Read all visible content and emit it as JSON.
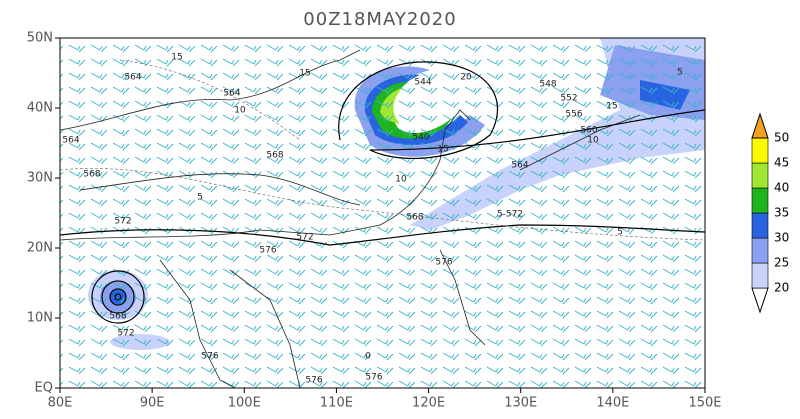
{
  "map": {
    "title": "00Z18MAY2020",
    "lon_ticks": [
      {
        "value": 80,
        "label": "80E"
      },
      {
        "value": 90,
        "label": "90E"
      },
      {
        "value": 100,
        "label": "100E"
      },
      {
        "value": 110,
        "label": "110E"
      },
      {
        "value": 120,
        "label": "120E"
      },
      {
        "value": 130,
        "label": "130E"
      },
      {
        "value": 140,
        "label": "140E"
      },
      {
        "value": 150,
        "label": "150E"
      }
    ],
    "lat_ticks": [
      {
        "value": 0,
        "label": "EQ"
      },
      {
        "value": 10,
        "label": "10N"
      },
      {
        "value": 20,
        "label": "20N"
      },
      {
        "value": 30,
        "label": "30N"
      },
      {
        "value": 40,
        "label": "40N"
      },
      {
        "value": 50,
        "label": "50N"
      }
    ],
    "colorbar": {
      "levels": [
        20,
        25,
        30,
        35,
        40,
        45,
        50
      ],
      "colors": [
        "#ffffff",
        "#c8d2fa",
        "#8ca0f0",
        "#2864e0",
        "#1eb41e",
        "#a0e632",
        "#fafa00",
        "#f4a020"
      ]
    },
    "contour_labels": [
      "15",
      "564",
      "564",
      "10",
      "15",
      "544",
      "20",
      "548",
      "552",
      "556",
      "560",
      "564",
      "10",
      "5",
      "15",
      "540",
      "15",
      "10",
      "568",
      "564",
      "568",
      "5",
      "572",
      "572",
      "568",
      "5-572",
      "5",
      "576",
      "576",
      "568",
      "572",
      "576",
      "576",
      "576",
      "0"
    ]
  }
}
